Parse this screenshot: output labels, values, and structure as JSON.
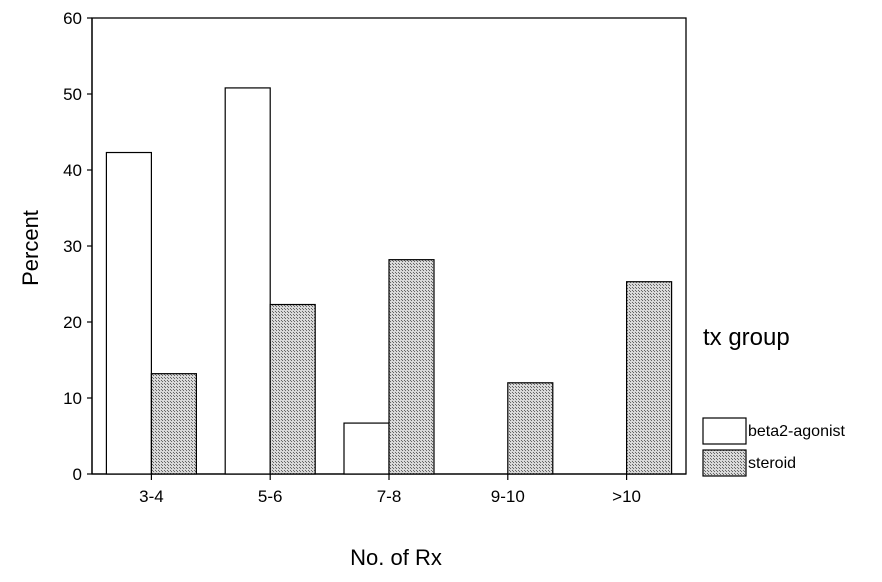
{
  "chart_data": {
    "type": "bar",
    "title": "",
    "xlabel": "No. of Rx",
    "ylabel": "Percent",
    "categories": [
      "3-4",
      "5-6",
      "7-8",
      "9-10",
      ">10"
    ],
    "ylim": [
      0,
      60
    ],
    "yticks": [
      0,
      10,
      20,
      30,
      40,
      50,
      60
    ],
    "grid": false,
    "legend": {
      "title": "tx group",
      "placement": "right"
    },
    "series": [
      {
        "name": "beta2-agonist",
        "values": [
          42.3,
          50.8,
          6.7,
          0,
          0
        ],
        "fill": "#ffffff",
        "stroke": "#000000"
      },
      {
        "name": "steroid",
        "values": [
          13.2,
          22.3,
          28.2,
          12.0,
          25.3
        ],
        "fill": "#c7c7c7",
        "stroke": "#000000"
      }
    ]
  }
}
